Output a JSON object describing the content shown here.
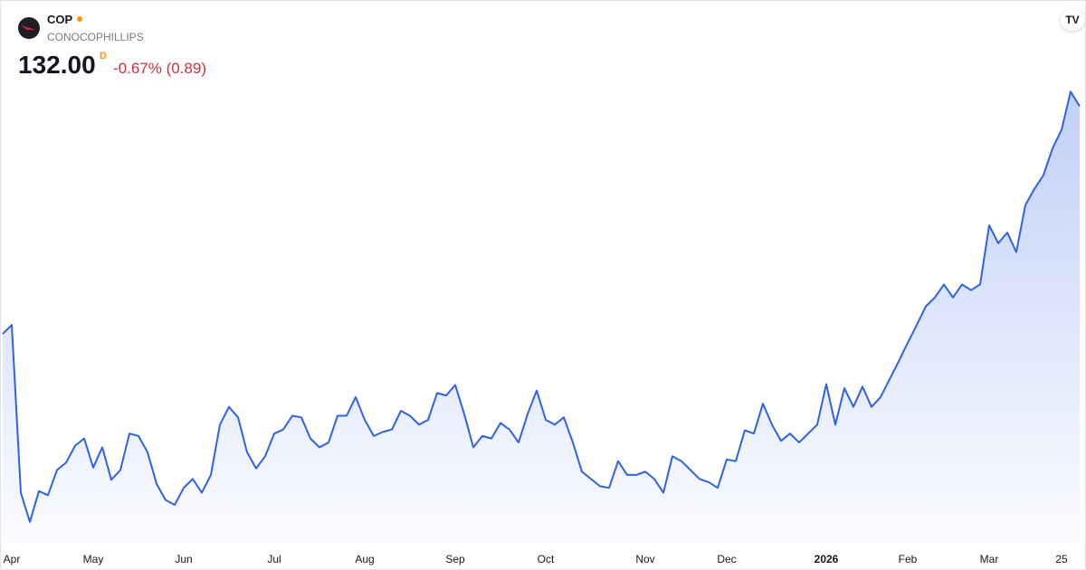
{
  "symbol": "COP",
  "name": "CONOCOPHILLIPS",
  "price": "132.00",
  "interval": "D",
  "change": "-0.67% (0.89)",
  "chart_data": {
    "type": "area",
    "color": "#2f62e6",
    "categories": [
      null,
      "Apr",
      null,
      null,
      null,
      null,
      null,
      null,
      null,
      null,
      "May",
      null,
      null,
      null,
      null,
      null,
      null,
      null,
      null,
      null,
      "Jun",
      null,
      null,
      null,
      null,
      null,
      null,
      null,
      null,
      null,
      "Jul",
      null,
      null,
      null,
      null,
      null,
      null,
      null,
      null,
      null,
      "Aug",
      null,
      null,
      null,
      null,
      null,
      null,
      null,
      null,
      null,
      "Sep",
      null,
      null,
      null,
      null,
      null,
      null,
      null,
      null,
      null,
      "Oct",
      null,
      null,
      null,
      null,
      null,
      null,
      null,
      null,
      null,
      null,
      "Nov",
      null,
      null,
      null,
      null,
      null,
      null,
      null,
      null,
      "Dec",
      null,
      null,
      null,
      null,
      null,
      null,
      null,
      null,
      null,
      null,
      "2026",
      null,
      null,
      null,
      null,
      null,
      null,
      null,
      null,
      "Feb",
      null,
      null,
      null,
      null,
      null,
      null,
      null,
      null,
      "Mar",
      null,
      null,
      null,
      null,
      null,
      null,
      null,
      "25",
      null,
      null
    ],
    "values": [
      103.9,
      105.0,
      84.3,
      80.7,
      84.5,
      84.0,
      87.1,
      88.0,
      90.1,
      91.0,
      87.4,
      89.9,
      85.9,
      87.1,
      91.6,
      91.3,
      89.3,
      85.4,
      83.4,
      82.8,
      84.9,
      86.0,
      84.3,
      86.5,
      92.7,
      94.9,
      93.6,
      89.3,
      87.3,
      88.8,
      91.6,
      92.1,
      93.8,
      93.6,
      91.0,
      89.9,
      90.5,
      93.8,
      93.8,
      96.1,
      93.3,
      91.3,
      91.8,
      92.1,
      94.4,
      93.8,
      92.7,
      93.3,
      96.6,
      96.3,
      97.6,
      94.0,
      89.9,
      91.3,
      91.0,
      92.9,
      92.1,
      90.5,
      94.0,
      96.9,
      93.3,
      92.7,
      93.6,
      90.5,
      86.9,
      86.0,
      85.1,
      84.9,
      88.2,
      86.5,
      86.5,
      86.9,
      86.0,
      84.3,
      88.8,
      88.2,
      87.1,
      86.0,
      85.6,
      84.9,
      88.4,
      88.2,
      92.0,
      91.6,
      95.3,
      92.7,
      90.7,
      91.6,
      90.5,
      91.6,
      92.7,
      97.7,
      92.7,
      97.2,
      94.9,
      97.4,
      94.9,
      96.1,
      98.3,
      100.5,
      102.8,
      105.0,
      107.3,
      108.4,
      110.0,
      108.4,
      110.0,
      109.3,
      110.0,
      117.3,
      115.1,
      116.4,
      114.0,
      119.8,
      121.8,
      123.5,
      126.8,
      129.1,
      133.8,
      132.0
    ],
    "ylim": [
      78,
      145
    ]
  }
}
